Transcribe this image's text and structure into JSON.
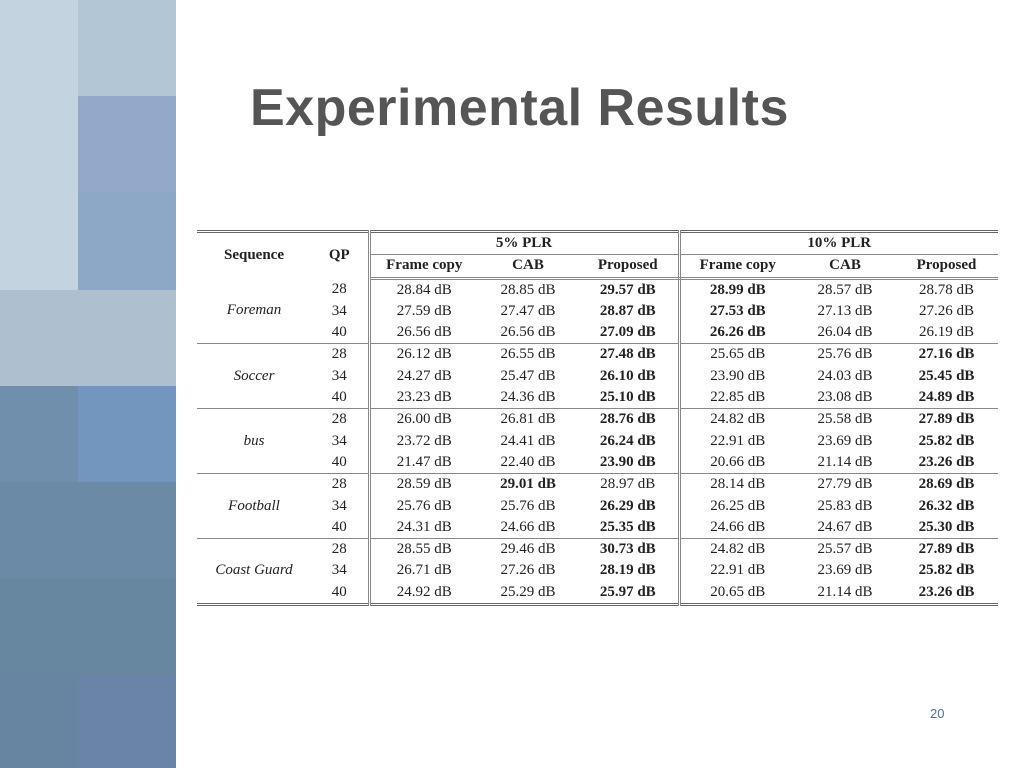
{
  "slide": {
    "title": "Experimental Results",
    "page_number": "20"
  },
  "table": {
    "headers": {
      "sequence": "Sequence",
      "qp": "QP",
      "plr5": "5% PLR",
      "plr10": "10% PLR",
      "frame_copy": "Frame copy",
      "cab": "CAB",
      "proposed": "Proposed"
    },
    "groups": [
      {
        "sequence": "Foreman",
        "rows": [
          {
            "qp": "28",
            "values": [
              "28.84 dB",
              "28.85 dB",
              "29.57 dB",
              "28.99 dB",
              "28.57 dB",
              "28.78 dB"
            ],
            "bold": [
              false,
              false,
              true,
              true,
              false,
              false
            ]
          },
          {
            "qp": "34",
            "values": [
              "27.59 dB",
              "27.47 dB",
              "28.87 dB",
              "27.53 dB",
              "27.13 dB",
              "27.26 dB"
            ],
            "bold": [
              false,
              false,
              true,
              true,
              false,
              false
            ]
          },
          {
            "qp": "40",
            "values": [
              "26.56 dB",
              "26.56 dB",
              "27.09 dB",
              "26.26 dB",
              "26.04 dB",
              "26.19 dB"
            ],
            "bold": [
              false,
              false,
              true,
              true,
              false,
              false
            ]
          }
        ]
      },
      {
        "sequence": "Soccer",
        "rows": [
          {
            "qp": "28",
            "values": [
              "26.12 dB",
              "26.55 dB",
              "27.48 dB",
              "25.65 dB",
              "25.76 dB",
              "27.16 dB"
            ],
            "bold": [
              false,
              false,
              true,
              false,
              false,
              true
            ]
          },
          {
            "qp": "34",
            "values": [
              "24.27 dB",
              "25.47 dB",
              "26.10 dB",
              "23.90 dB",
              "24.03 dB",
              "25.45 dB"
            ],
            "bold": [
              false,
              false,
              true,
              false,
              false,
              true
            ]
          },
          {
            "qp": "40",
            "values": [
              "23.23 dB",
              "24.36 dB",
              "25.10 dB",
              "22.85 dB",
              "23.08 dB",
              "24.89 dB"
            ],
            "bold": [
              false,
              false,
              true,
              false,
              false,
              true
            ]
          }
        ]
      },
      {
        "sequence": "bus",
        "rows": [
          {
            "qp": "28",
            "values": [
              "26.00 dB",
              "26.81 dB",
              "28.76 dB",
              "24.82 dB",
              "25.58 dB",
              "27.89 dB"
            ],
            "bold": [
              false,
              false,
              true,
              false,
              false,
              true
            ]
          },
          {
            "qp": "34",
            "values": [
              "23.72 dB",
              "24.41 dB",
              "26.24 dB",
              "22.91 dB",
              "23.69 dB",
              "25.82 dB"
            ],
            "bold": [
              false,
              false,
              true,
              false,
              false,
              true
            ]
          },
          {
            "qp": "40",
            "values": [
              "21.47 dB",
              "22.40 dB",
              "23.90 dB",
              "20.66 dB",
              "21.14 dB",
              "23.26 dB"
            ],
            "bold": [
              false,
              false,
              true,
              false,
              false,
              true
            ]
          }
        ]
      },
      {
        "sequence": "Football",
        "rows": [
          {
            "qp": "28",
            "values": [
              "28.59 dB",
              "29.01 dB",
              "28.97 dB",
              "28.14 dB",
              "27.79 dB",
              "28.69 dB"
            ],
            "bold": [
              false,
              true,
              false,
              false,
              false,
              true
            ]
          },
          {
            "qp": "34",
            "values": [
              "25.76 dB",
              "25.76 dB",
              "26.29 dB",
              "26.25 dB",
              "25.83 dB",
              "26.32 dB"
            ],
            "bold": [
              false,
              false,
              true,
              false,
              false,
              true
            ]
          },
          {
            "qp": "40",
            "values": [
              "24.31 dB",
              "24.66 dB",
              "25.35 dB",
              "24.66 dB",
              "24.67 dB",
              "25.30 dB"
            ],
            "bold": [
              false,
              false,
              true,
              false,
              false,
              true
            ]
          }
        ]
      },
      {
        "sequence": "Coast Guard",
        "rows": [
          {
            "qp": "28",
            "values": [
              "28.55 dB",
              "29.46 dB",
              "30.73 dB",
              "24.82 dB",
              "25.57 dB",
              "27.89 dB"
            ],
            "bold": [
              false,
              false,
              true,
              false,
              false,
              true
            ]
          },
          {
            "qp": "34",
            "values": [
              "26.71 dB",
              "27.26 dB",
              "28.19 dB",
              "22.91 dB",
              "23.69 dB",
              "25.82 dB"
            ],
            "bold": [
              false,
              false,
              true,
              false,
              false,
              true
            ]
          },
          {
            "qp": "40",
            "values": [
              "24.92 dB",
              "25.29 dB",
              "25.97 dB",
              "20.65 dB",
              "21.14 dB",
              "23.26 dB"
            ],
            "bold": [
              false,
              false,
              true,
              false,
              false,
              true
            ]
          }
        ]
      }
    ]
  },
  "colors": {
    "title": "#555555",
    "page_number": "#4a6fa5",
    "deco_light": "#b3c7d8",
    "deco_mid": "#8ea9c9",
    "deco_dark": "#6e8fb0"
  }
}
